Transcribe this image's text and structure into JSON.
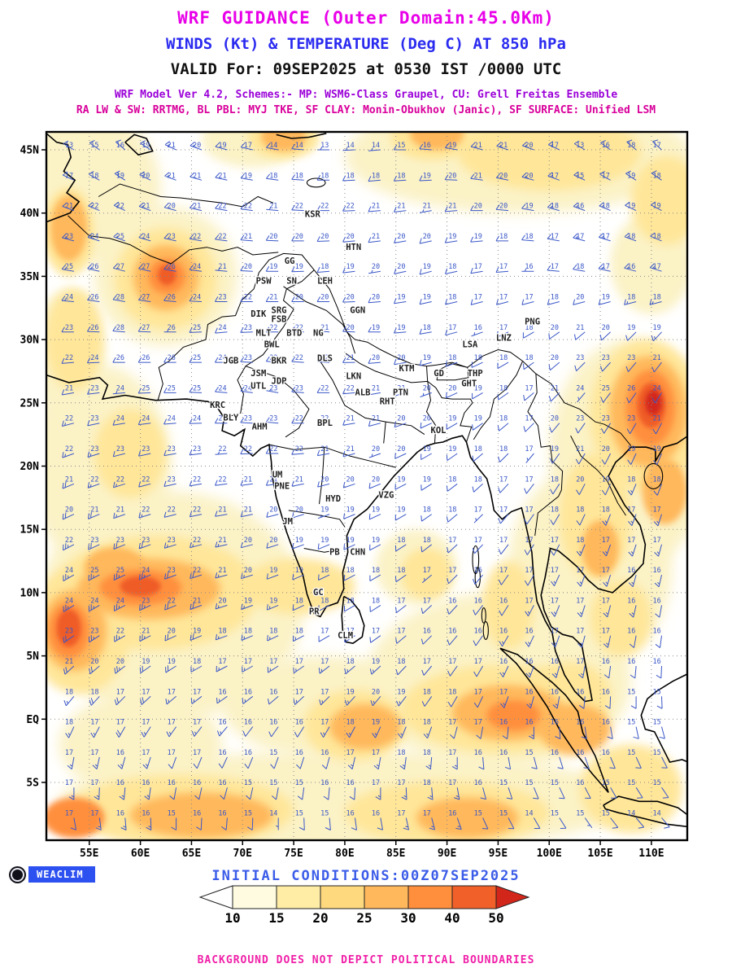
{
  "header": {
    "title": "WRF GUIDANCE (Outer Domain:45.0Km)",
    "subtitle": "WINDS (Kt) & TEMPERATURE (Deg C) AT 850 hPa",
    "valid_line": "VALID For: 09SEP2025 at 0530 IST /0000 UTC",
    "model_line1": "WRF Model Ver 4.2, Schemes:- MP: WSM6-Class Graupel, CU: Grell Freitas Ensemble",
    "model_line2": "RA LW & SW: RRTMG, BL PBL: MYJ TKE, SF CLAY: Monin-Obukhov (Janic), SF SURFACE: Unified LSM"
  },
  "map": {
    "lat_ticks": [
      "45N",
      "40N",
      "35N",
      "30N",
      "25N",
      "20N",
      "15N",
      "10N",
      "5N",
      "EQ",
      "5S"
    ],
    "lat_values": [
      45,
      40,
      35,
      30,
      25,
      20,
      15,
      10,
      5,
      0,
      -5
    ],
    "lon_ticks": [
      "55E",
      "60E",
      "65E",
      "70E",
      "75E",
      "80E",
      "85E",
      "90E",
      "95E",
      "100E",
      "105E",
      "110E"
    ],
    "lon_values": [
      55,
      60,
      65,
      70,
      75,
      80,
      85,
      90,
      95,
      100,
      105,
      110
    ],
    "stations": [
      {
        "id": "KSR",
        "lon": 76.1,
        "lat": 39.7
      },
      {
        "id": "HTN",
        "lon": 80.1,
        "lat": 37.1
      },
      {
        "id": "GG",
        "lon": 74.1,
        "lat": 36.0
      },
      {
        "id": "PSW",
        "lon": 71.3,
        "lat": 34.4
      },
      {
        "id": "SN",
        "lon": 74.3,
        "lat": 34.4
      },
      {
        "id": "LEH",
        "lon": 77.3,
        "lat": 34.4
      },
      {
        "id": "SRG",
        "lon": 72.8,
        "lat": 32.1
      },
      {
        "id": "GGN",
        "lon": 80.5,
        "lat": 32.1
      },
      {
        "id": "DIK",
        "lon": 70.8,
        "lat": 31.8
      },
      {
        "id": "FSB",
        "lon": 72.8,
        "lat": 31.4
      },
      {
        "id": "PNG",
        "lon": 97.6,
        "lat": 31.2
      },
      {
        "id": "MLT",
        "lon": 71.3,
        "lat": 30.3
      },
      {
        "id": "BTD",
        "lon": 74.3,
        "lat": 30.3
      },
      {
        "id": "NG",
        "lon": 76.9,
        "lat": 30.3
      },
      {
        "id": "BWL",
        "lon": 72.1,
        "lat": 29.4
      },
      {
        "id": "LNZ",
        "lon": 94.8,
        "lat": 29.9
      },
      {
        "id": "LSA",
        "lon": 91.5,
        "lat": 29.4
      },
      {
        "id": "JGB",
        "lon": 68.1,
        "lat": 28.1
      },
      {
        "id": "BKR",
        "lon": 72.8,
        "lat": 28.1
      },
      {
        "id": "DLS",
        "lon": 77.3,
        "lat": 28.3
      },
      {
        "id": "JSM",
        "lon": 70.8,
        "lat": 27.1
      },
      {
        "id": "KTM",
        "lon": 85.3,
        "lat": 27.5
      },
      {
        "id": "GD",
        "lon": 88.7,
        "lat": 27.1
      },
      {
        "id": "THP",
        "lon": 92.0,
        "lat": 27.1
      },
      {
        "id": "JDP",
        "lon": 72.8,
        "lat": 26.5
      },
      {
        "id": "UTL",
        "lon": 70.8,
        "lat": 26.1
      },
      {
        "id": "LKN",
        "lon": 80.1,
        "lat": 26.9
      },
      {
        "id": "GHT",
        "lon": 91.4,
        "lat": 26.3
      },
      {
        "id": "ALB",
        "lon": 81.0,
        "lat": 25.6
      },
      {
        "id": "PTN",
        "lon": 84.7,
        "lat": 25.6
      },
      {
        "id": "RHT",
        "lon": 83.4,
        "lat": 24.9
      },
      {
        "id": "KRC",
        "lon": 66.8,
        "lat": 24.6
      },
      {
        "id": "BLY",
        "lon": 68.1,
        "lat": 23.6
      },
      {
        "id": "AHM",
        "lon": 70.9,
        "lat": 22.9
      },
      {
        "id": "BPL",
        "lon": 77.3,
        "lat": 23.2
      },
      {
        "id": "KOL",
        "lon": 88.4,
        "lat": 22.6
      },
      {
        "id": "UM",
        "lon": 72.9,
        "lat": 19.1
      },
      {
        "id": "PNE",
        "lon": 73.1,
        "lat": 18.2
      },
      {
        "id": "HYD",
        "lon": 78.1,
        "lat": 17.2
      },
      {
        "id": "VZG",
        "lon": 83.3,
        "lat": 17.5
      },
      {
        "id": "JM",
        "lon": 73.9,
        "lat": 15.4
      },
      {
        "id": "PB",
        "lon": 78.5,
        "lat": 13.0
      },
      {
        "id": "CHN",
        "lon": 80.5,
        "lat": 13.0
      },
      {
        "id": "GC",
        "lon": 76.9,
        "lat": 9.8
      },
      {
        "id": "PR",
        "lon": 76.5,
        "lat": 8.3
      },
      {
        "id": "CLM",
        "lon": 79.3,
        "lat": 6.4
      }
    ]
  },
  "wind_field": {
    "temp_units": "Deg C",
    "speed_units": "Kt",
    "lons": [
      53.5,
      58.5,
      63.5,
      68.5,
      73.5,
      78.5,
      83.5,
      88.5,
      93.5,
      98.5,
      103.5,
      108.5,
      113.5
    ],
    "lats": [
      45,
      40.2,
      35.4,
      30.6,
      25.8,
      21,
      16.2,
      11.4,
      6.6,
      1.8,
      -3,
      -7.8
    ],
    "temps": [
      [
        13,
        16,
        21,
        19,
        14,
        13,
        14,
        16,
        21,
        20,
        13,
        18,
        16
      ],
      [
        21,
        22,
        20,
        22,
        21,
        22,
        21,
        21,
        20,
        19,
        16,
        19,
        18
      ],
      [
        25,
        27,
        26,
        21,
        19,
        18,
        20,
        19,
        17,
        16,
        18,
        16,
        17
      ],
      [
        23,
        28,
        26,
        24,
        22,
        21,
        19,
        18,
        16,
        18,
        21,
        19,
        18
      ],
      [
        21,
        24,
        25,
        24,
        23,
        22,
        21,
        20,
        19,
        17,
        24,
        26,
        22
      ],
      [
        22,
        23,
        23,
        22,
        22,
        21,
        20,
        19,
        18,
        17,
        21,
        19,
        18
      ],
      [
        20,
        21,
        22,
        21,
        20,
        19,
        19,
        18,
        17,
        17,
        18,
        17,
        17
      ],
      [
        24,
        25,
        23,
        21,
        19,
        18,
        18,
        17,
        16,
        17,
        17,
        16,
        16
      ],
      [
        23,
        22,
        20,
        18,
        18,
        17,
        17,
        16,
        16,
        16,
        17,
        16,
        16
      ],
      [
        18,
        17,
        17,
        16,
        16,
        17,
        20,
        18,
        17,
        16,
        16,
        15,
        15
      ],
      [
        17,
        16,
        17,
        16,
        15,
        16,
        17,
        18,
        16,
        15,
        16,
        15,
        15
      ],
      [
        17,
        16,
        15,
        16,
        14,
        15,
        16,
        17,
        15,
        14,
        15,
        14,
        14
      ]
    ],
    "dirs": [
      [
        300,
        310,
        295,
        285,
        280,
        270,
        265,
        275,
        285,
        290,
        300,
        310,
        315
      ],
      [
        290,
        295,
        285,
        280,
        275,
        270,
        265,
        260,
        270,
        280,
        290,
        295,
        300
      ],
      [
        280,
        285,
        280,
        275,
        270,
        265,
        260,
        255,
        260,
        270,
        280,
        285,
        290
      ],
      [
        270,
        275,
        270,
        265,
        270,
        275,
        270,
        260,
        250,
        240,
        230,
        225,
        220
      ],
      [
        260,
        265,
        270,
        275,
        280,
        270,
        260,
        250,
        240,
        230,
        220,
        215,
        210
      ],
      [
        250,
        255,
        260,
        265,
        270,
        260,
        250,
        240,
        230,
        220,
        210,
        205,
        200
      ],
      [
        245,
        250,
        255,
        260,
        255,
        250,
        245,
        235,
        225,
        215,
        205,
        200,
        195
      ],
      [
        240,
        245,
        250,
        255,
        250,
        245,
        240,
        230,
        220,
        210,
        200,
        195,
        190
      ],
      [
        235,
        240,
        245,
        250,
        245,
        240,
        235,
        225,
        215,
        205,
        195,
        190,
        185
      ],
      [
        220,
        225,
        230,
        235,
        230,
        225,
        220,
        215,
        205,
        195,
        185,
        180,
        175
      ],
      [
        190,
        195,
        200,
        205,
        200,
        195,
        190,
        185,
        175,
        165,
        160,
        155,
        150
      ],
      [
        170,
        175,
        180,
        185,
        180,
        175,
        170,
        165,
        155,
        150,
        145,
        140,
        138
      ]
    ],
    "speeds": [
      [
        10,
        10,
        15,
        10,
        10,
        5,
        5,
        10,
        10,
        15,
        10,
        10,
        10
      ],
      [
        10,
        15,
        10,
        10,
        5,
        10,
        10,
        5,
        10,
        10,
        15,
        10,
        10
      ],
      [
        15,
        10,
        10,
        5,
        10,
        10,
        5,
        10,
        10,
        5,
        10,
        15,
        10
      ],
      [
        10,
        10,
        5,
        10,
        10,
        5,
        10,
        10,
        5,
        10,
        10,
        10,
        15
      ],
      [
        10,
        5,
        10,
        10,
        5,
        10,
        10,
        5,
        10,
        10,
        5,
        10,
        10
      ],
      [
        15,
        10,
        10,
        5,
        10,
        10,
        5,
        10,
        10,
        5,
        10,
        10,
        10
      ],
      [
        20,
        15,
        10,
        10,
        10,
        5,
        10,
        10,
        5,
        10,
        10,
        15,
        10
      ],
      [
        25,
        25,
        20,
        15,
        10,
        10,
        10,
        5,
        10,
        10,
        15,
        15,
        10
      ],
      [
        20,
        25,
        20,
        15,
        15,
        10,
        10,
        10,
        10,
        15,
        15,
        10,
        10
      ],
      [
        15,
        20,
        15,
        15,
        10,
        15,
        15,
        10,
        10,
        15,
        10,
        10,
        10
      ],
      [
        15,
        15,
        10,
        10,
        10,
        10,
        15,
        15,
        10,
        10,
        10,
        10,
        10
      ],
      [
        10,
        15,
        10,
        10,
        5,
        10,
        10,
        15,
        10,
        10,
        5,
        10,
        10
      ]
    ]
  },
  "legend": {
    "values": [
      "10",
      "15",
      "20",
      "25",
      "30",
      "40",
      "50"
    ],
    "colors": [
      "#ffffff",
      "#fffbe0",
      "#ffeda6",
      "#ffd97e",
      "#ffb85c",
      "#ff8f3c",
      "#f2602a",
      "#d3261a"
    ]
  },
  "footer": {
    "initial_conditions": "INITIAL CONDITIONS:00Z07SEP2025",
    "brand": "WEACLIM",
    "disclaimer": "BACKGROUND DOES NOT DEPICT POLITICAL BOUNDARIES"
  },
  "palette": {
    "title_magenta": "#e800e8",
    "subtitle_blue": "#2b2bf0",
    "valid_black": "#111111",
    "model_purple": "#9b00d8",
    "model_magenta": "#d8009b",
    "barb_blue": "#3a57c8",
    "station_gray": "#1f1f1f",
    "initial_blue": "#3b5ce8",
    "brand_bg": "#2d50f0",
    "disclaimer_pink": "#f020a8"
  }
}
